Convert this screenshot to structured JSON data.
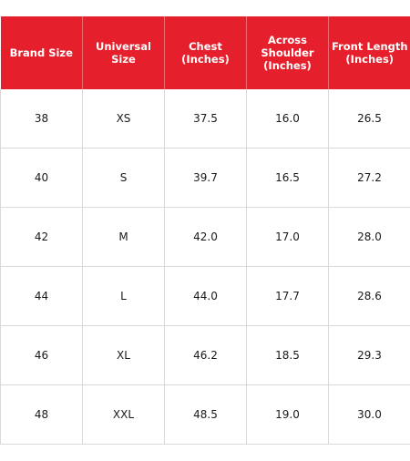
{
  "size_chart": {
    "headers": [
      "Brand Size",
      "Universal Size",
      "Chest\n(Inches)",
      "Across\nShoulder\n(Inches)",
      "Front Length\n(Inches)"
    ],
    "rows": [
      [
        "38",
        "XS",
        "37.5",
        "16.0",
        "26.5"
      ],
      [
        "40",
        "S",
        "39.7",
        "16.5",
        "27.2"
      ],
      [
        "42",
        "M",
        "42.0",
        "17.0",
        "28.0"
      ],
      [
        "44",
        "L",
        "44.0",
        "17.7",
        "28.6"
      ],
      [
        "46",
        "XL",
        "46.2",
        "18.5",
        "29.3"
      ],
      [
        "48",
        "XXL",
        "48.5",
        "19.0",
        "30.0"
      ]
    ]
  },
  "colors": {
    "header_bg": "#e5202c",
    "header_text": "#ffffff",
    "grid_line": "#d9d9d9"
  }
}
